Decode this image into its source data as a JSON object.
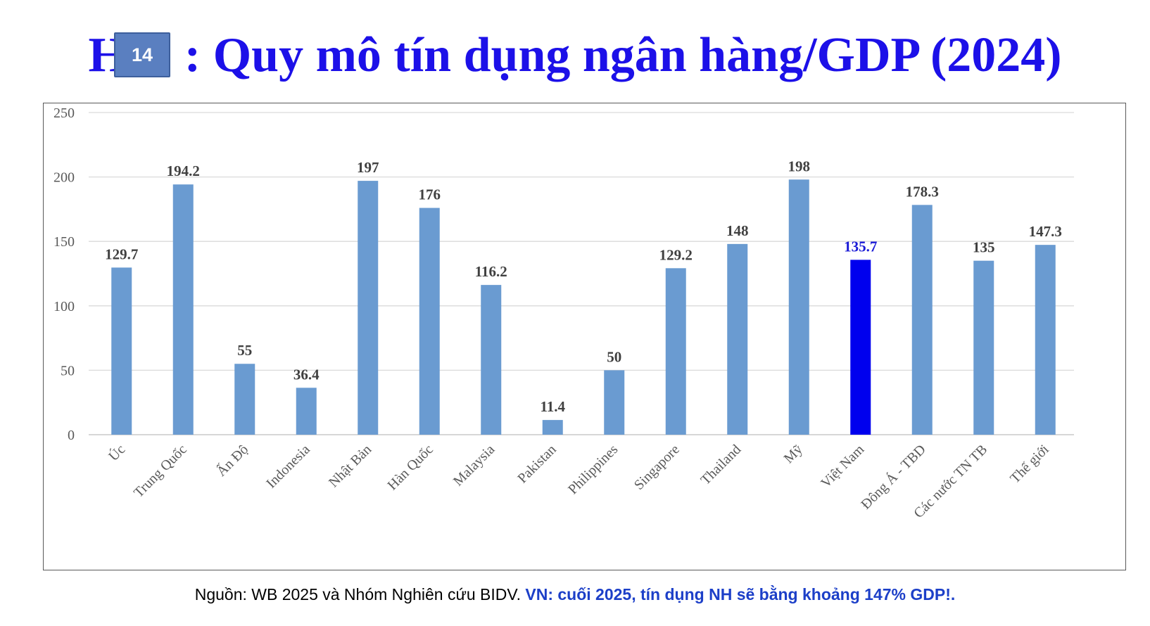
{
  "title": {
    "prefix": "H",
    "text": ": Quy mô tín dụng ngân hàng/GDP (2024)"
  },
  "slide_number": "14",
  "source": {
    "text": "Nguồn: WB 2025 và Nhóm Nghiên cứu BIDV.",
    "note": "VN: cuối 2025, tín dụng NH sẽ bằng khoảng 147% GDP!."
  },
  "colors": {
    "title": "#1c10e8",
    "bar": "#6a9bd1",
    "highlight_bar": "#0000ee",
    "highlight_label": "#1a1ad6",
    "label": "#404040",
    "grid": "#d9d9d9"
  },
  "chart_data": {
    "type": "bar",
    "title": "",
    "xlabel": "",
    "ylabel": "",
    "ylim": [
      0,
      250
    ],
    "yticks": [
      0,
      50,
      100,
      150,
      200,
      250
    ],
    "grid": true,
    "legend": "none",
    "highlight_category": "Việt Nam",
    "categories": [
      "Úc",
      "Trung Quốc",
      "Ấn Độ",
      "Indonesia",
      "Nhật Bản",
      "Hàn Quốc",
      "Malaysia",
      "Pakistan",
      "Philippines",
      "Singapore",
      "Thailand",
      "Mỹ",
      "Việt Nam",
      "Đông Á - TBD",
      "Các nước TN TB",
      "Thế giới"
    ],
    "values": [
      129.7,
      194.2,
      55,
      36.4,
      197,
      176,
      116.2,
      11.4,
      50,
      129.2,
      148,
      198,
      135.7,
      178.3,
      135,
      147.3
    ]
  }
}
